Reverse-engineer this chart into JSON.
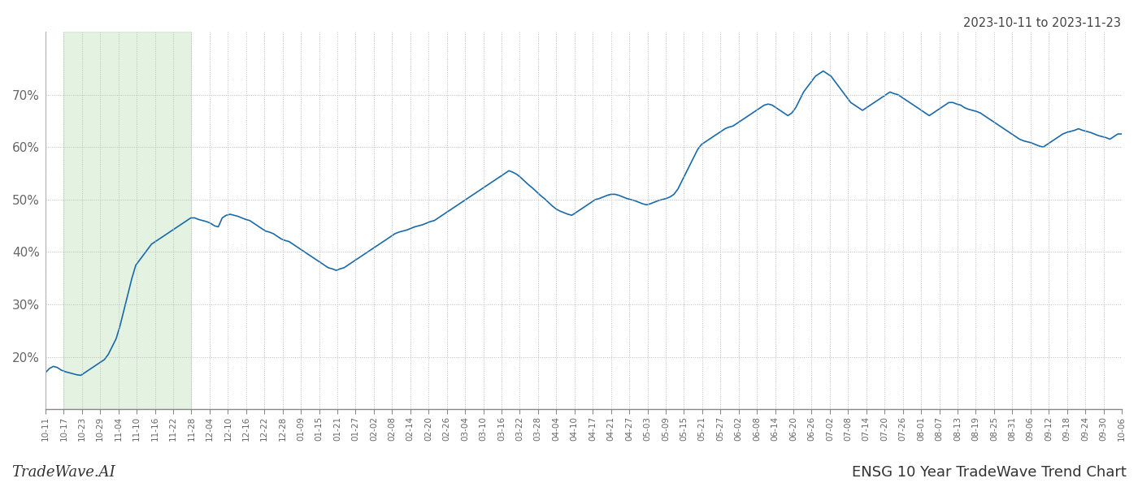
{
  "title_top_right": "2023-10-11 to 2023-11-23",
  "title_bottom_left": "TradeWave.AI",
  "title_bottom_right": "ENSG 10 Year TradeWave Trend Chart",
  "line_color": "#1a6aab",
  "line_width": 1.2,
  "bg_color": "#ffffff",
  "grid_color": "#bbbbbb",
  "shading_color": "#c8e6c4",
  "shading_alpha": 0.5,
  "ylim": [
    10,
    82
  ],
  "yticks": [
    20,
    30,
    40,
    50,
    60,
    70
  ],
  "ytick_labels": [
    "20%",
    "30%",
    "40%",
    "50%",
    "60%",
    "70%"
  ],
  "x_labels": [
    "10-11",
    "10-17",
    "10-23",
    "10-29",
    "11-04",
    "11-10",
    "11-16",
    "11-22",
    "11-28",
    "12-04",
    "12-10",
    "12-16",
    "12-22",
    "12-28",
    "01-09",
    "01-15",
    "01-21",
    "01-27",
    "02-02",
    "02-08",
    "02-14",
    "02-20",
    "02-26",
    "03-04",
    "03-10",
    "03-16",
    "03-22",
    "03-28",
    "04-04",
    "04-10",
    "04-17",
    "04-21",
    "04-27",
    "05-03",
    "05-09",
    "05-15",
    "05-21",
    "05-27",
    "06-02",
    "06-08",
    "06-14",
    "06-20",
    "06-26",
    "07-02",
    "07-08",
    "07-14",
    "07-20",
    "07-26",
    "08-01",
    "08-07",
    "08-13",
    "08-19",
    "08-25",
    "08-31",
    "09-06",
    "09-12",
    "09-18",
    "09-24",
    "09-30",
    "10-06"
  ],
  "shading_xstart_idx": 1,
  "shading_xend_idx": 8,
  "y_values": [
    17.0,
    17.8,
    18.2,
    18.0,
    17.5,
    17.2,
    17.0,
    16.8,
    16.6,
    16.5,
    17.0,
    17.5,
    18.0,
    18.5,
    19.0,
    19.5,
    20.5,
    22.0,
    23.5,
    26.0,
    29.0,
    32.0,
    35.0,
    37.5,
    38.5,
    39.5,
    40.5,
    41.5,
    42.0,
    42.5,
    43.0,
    43.5,
    44.0,
    44.5,
    45.0,
    45.5,
    46.0,
    46.5,
    46.5,
    46.2,
    46.0,
    45.8,
    45.5,
    45.0,
    44.8,
    46.5,
    47.0,
    47.2,
    47.0,
    46.8,
    46.5,
    46.2,
    46.0,
    45.5,
    45.0,
    44.5,
    44.0,
    43.8,
    43.5,
    43.0,
    42.5,
    42.2,
    42.0,
    41.5,
    41.0,
    40.5,
    40.0,
    39.5,
    39.0,
    38.5,
    38.0,
    37.5,
    37.0,
    36.8,
    36.5,
    36.8,
    37.0,
    37.5,
    38.0,
    38.5,
    39.0,
    39.5,
    40.0,
    40.5,
    41.0,
    41.5,
    42.0,
    42.5,
    43.0,
    43.5,
    43.8,
    44.0,
    44.2,
    44.5,
    44.8,
    45.0,
    45.2,
    45.5,
    45.8,
    46.0,
    46.5,
    47.0,
    47.5,
    48.0,
    48.5,
    49.0,
    49.5,
    50.0,
    50.5,
    51.0,
    51.5,
    52.0,
    52.5,
    53.0,
    53.5,
    54.0,
    54.5,
    55.0,
    55.5,
    55.2,
    54.8,
    54.2,
    53.5,
    52.8,
    52.2,
    51.5,
    50.8,
    50.2,
    49.5,
    48.8,
    48.2,
    47.8,
    47.5,
    47.2,
    47.0,
    47.5,
    48.0,
    48.5,
    49.0,
    49.5,
    50.0,
    50.2,
    50.5,
    50.8,
    51.0,
    51.0,
    50.8,
    50.5,
    50.2,
    50.0,
    49.8,
    49.5,
    49.2,
    49.0,
    49.2,
    49.5,
    49.8,
    50.0,
    50.2,
    50.5,
    51.0,
    52.0,
    53.5,
    55.0,
    56.5,
    58.0,
    59.5,
    60.5,
    61.0,
    61.5,
    62.0,
    62.5,
    63.0,
    63.5,
    63.8,
    64.0,
    64.5,
    65.0,
    65.5,
    66.0,
    66.5,
    67.0,
    67.5,
    68.0,
    68.2,
    68.0,
    67.5,
    67.0,
    66.5,
    66.0,
    66.5,
    67.5,
    69.0,
    70.5,
    71.5,
    72.5,
    73.5,
    74.0,
    74.5,
    74.0,
    73.5,
    72.5,
    71.5,
    70.5,
    69.5,
    68.5,
    68.0,
    67.5,
    67.0,
    67.5,
    68.0,
    68.5,
    69.0,
    69.5,
    70.0,
    70.5,
    70.2,
    70.0,
    69.5,
    69.0,
    68.5,
    68.0,
    67.5,
    67.0,
    66.5,
    66.0,
    66.5,
    67.0,
    67.5,
    68.0,
    68.5,
    68.5,
    68.2,
    68.0,
    67.5,
    67.2,
    67.0,
    66.8,
    66.5,
    66.0,
    65.5,
    65.0,
    64.5,
    64.0,
    63.5,
    63.0,
    62.5,
    62.0,
    61.5,
    61.2,
    61.0,
    60.8,
    60.5,
    60.2,
    60.0,
    60.5,
    61.0,
    61.5,
    62.0,
    62.5,
    62.8,
    63.0,
    63.2,
    63.5,
    63.2,
    63.0,
    62.8,
    62.5,
    62.2,
    62.0,
    61.8,
    61.5,
    62.0,
    62.5,
    62.5
  ]
}
